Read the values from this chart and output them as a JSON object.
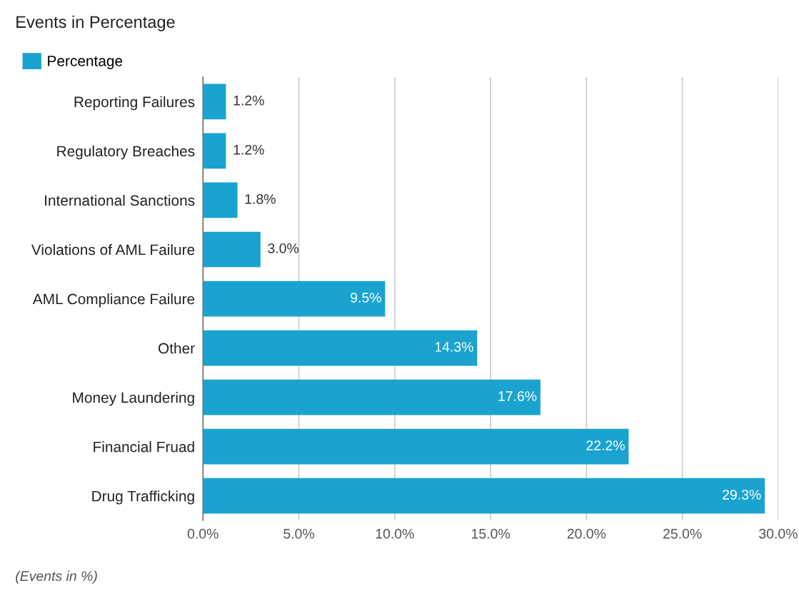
{
  "chart_data": {
    "type": "bar",
    "orientation": "horizontal",
    "title": "Events in Percentage",
    "categories": [
      "Reporting Failures",
      "Regulatory Breaches",
      "International Sanctions",
      "Violations of AML Failure",
      "AML Compliance Failure",
      "Other",
      "Money Laundering",
      "Financial Fruad",
      "Drug Trafficking"
    ],
    "series": [
      {
        "name": "Percentage",
        "color": "#1aa3cf",
        "values": [
          1.2,
          1.2,
          1.8,
          3.0,
          9.5,
          14.3,
          17.6,
          22.2,
          29.3
        ],
        "value_labels": [
          "1.2%",
          "1.2%",
          "1.8%",
          "3.0%",
          "9.5%",
          "14.3%",
          "17.6%",
          "22.2%",
          "29.3%"
        ]
      }
    ],
    "xlim": [
      0,
      30
    ],
    "xticks": [
      {
        "value": 0,
        "label": "0.0%"
      },
      {
        "value": 5,
        "label": "5.0%"
      },
      {
        "value": 10,
        "label": "10.0%"
      },
      {
        "value": 15,
        "label": "15.0%"
      },
      {
        "value": 20,
        "label": "20.0%"
      },
      {
        "value": 25,
        "label": "25.0%"
      },
      {
        "value": 30,
        "label": "30.0%"
      }
    ],
    "grid": "x",
    "legend": "top left",
    "annotations": [
      "(Events in %)"
    ]
  }
}
